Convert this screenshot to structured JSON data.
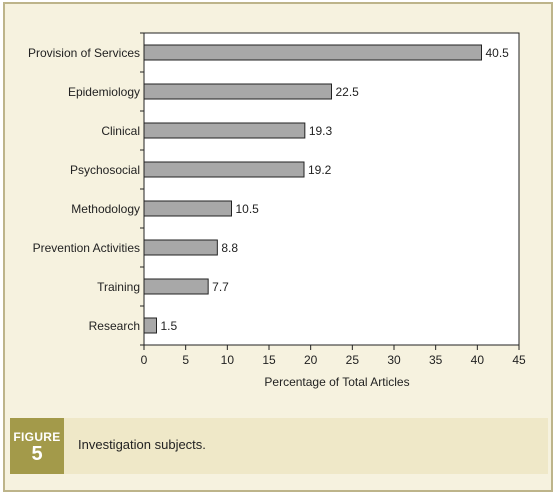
{
  "chart_data": {
    "type": "bar",
    "orientation": "horizontal",
    "categories": [
      "Provision of Services",
      "Epidemiology",
      "Clinical",
      "Psychosocial",
      "Methodology",
      "Prevention Activities",
      "Training",
      "Research"
    ],
    "values": [
      40.5,
      22.5,
      19.3,
      19.2,
      10.5,
      8.8,
      7.7,
      1.5
    ],
    "value_labels": [
      "40.5",
      "22.5",
      "19.3",
      "19.2",
      "10.5",
      "8.8",
      "7.7",
      "1.5"
    ],
    "xlabel": "Percentage of Total Articles",
    "ylabel": "",
    "xlim": [
      0,
      45
    ],
    "xticks": [
      0,
      5,
      10,
      15,
      20,
      25,
      30,
      35,
      40,
      45
    ],
    "grid": false,
    "bar_color": "#a8a8a8",
    "bar_edge_color": "#222222"
  },
  "caption": {
    "figure_word": "FIGURE",
    "figure_number": "5",
    "text": "Investigation subjects."
  },
  "colors": {
    "panel_background": "#f6f2df",
    "plot_background": "#ffffff",
    "caption_band": "#efe8c8",
    "figure_tag": "#a39a4a"
  }
}
